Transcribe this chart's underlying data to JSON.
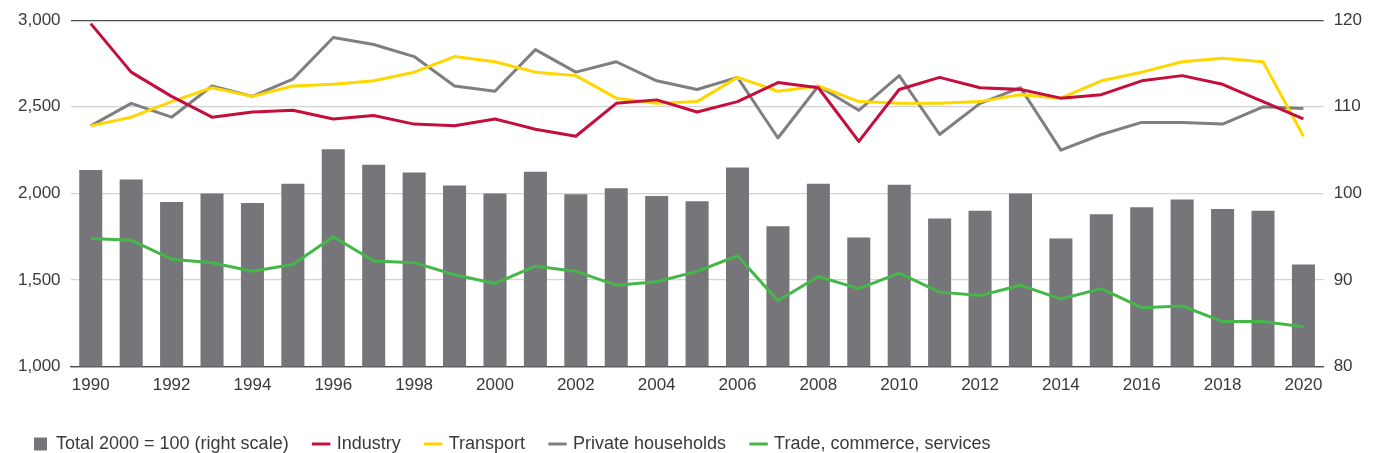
{
  "chart_data": {
    "type": "line",
    "categories": [
      "1990",
      null,
      "1992",
      null,
      "1994",
      null,
      "1996",
      null,
      "1998",
      null,
      "2000",
      null,
      "2002",
      null,
      "2004",
      null,
      "2006",
      null,
      "2008",
      null,
      "2010",
      null,
      "2012",
      null,
      "2014",
      null,
      "2016",
      null,
      "2018",
      null,
      "2020"
    ],
    "series": [
      {
        "name": "Total 2000 = 100 (right scale)",
        "type": "bar",
        "axis": "y2",
        "color": "#76767a",
        "values": [
          102.7,
          101.6,
          99.0,
          100.0,
          98.9,
          101.1,
          105.1,
          103.3,
          102.4,
          100.9,
          100.0,
          102.5,
          99.9,
          100.6,
          99.7,
          99.1,
          103.0,
          96.2,
          101.1,
          94.9,
          101.0,
          97.1,
          98.0,
          100.0,
          94.8,
          97.6,
          98.4,
          99.3,
          98.2,
          98.0,
          91.8
        ]
      },
      {
        "name": "Industry",
        "color": "#c40f3c",
        "values": [
          2980,
          2700,
          2560,
          2440,
          2470,
          2480,
          2430,
          2450,
          2400,
          2390,
          2430,
          2370,
          2330,
          2520,
          2540,
          2470,
          2530,
          2640,
          2610,
          2300,
          2600,
          2670,
          2610,
          2600,
          2550,
          2570,
          2650,
          2680,
          2630,
          2530,
          2430
        ]
      },
      {
        "name": "Transport",
        "color": "#ffd700",
        "values": [
          2390,
          2440,
          2530,
          2610,
          2560,
          2620,
          2630,
          2650,
          2700,
          2790,
          2760,
          2700,
          2680,
          2550,
          2520,
          2530,
          2670,
          2590,
          2620,
          2530,
          2520,
          2520,
          2530,
          2570,
          2550,
          2650,
          2700,
          2760,
          2780,
          2760,
          2330
        ]
      },
      {
        "name": "Private households",
        "color": "#7f7f7f",
        "values": [
          2390,
          2520,
          2440,
          2620,
          2560,
          2660,
          2900,
          2860,
          2790,
          2620,
          2590,
          2830,
          2700,
          2760,
          2650,
          2600,
          2670,
          2320,
          2620,
          2480,
          2680,
          2340,
          2520,
          2610,
          2250,
          2340,
          2410,
          2410,
          2400,
          2500,
          2490
        ]
      },
      {
        "name": "Trade, commerce, services",
        "color": "#45b649",
        "values": [
          1740,
          1730,
          1620,
          1600,
          1550,
          1590,
          1750,
          1610,
          1600,
          1530,
          1480,
          1580,
          1550,
          1470,
          1490,
          1550,
          1640,
          1380,
          1520,
          1450,
          1540,
          1430,
          1410,
          1470,
          1390,
          1450,
          1340,
          1350,
          1260,
          1260,
          1230
        ]
      }
    ],
    "ylim": [
      1000,
      3000
    ],
    "yticks": [
      {
        "value": 1000,
        "label": "1,000"
      },
      {
        "value": 1500,
        "label": "1,500"
      },
      {
        "value": 2000,
        "label": "2,000"
      },
      {
        "value": 2500,
        "label": "2,500"
      },
      {
        "value": 3000,
        "label": "3,000"
      }
    ],
    "y2lim": [
      80,
      120
    ],
    "y2ticks": [
      80,
      90,
      100,
      110,
      120
    ],
    "grid": "y",
    "legend": "bottom left",
    "marker": "none"
  }
}
